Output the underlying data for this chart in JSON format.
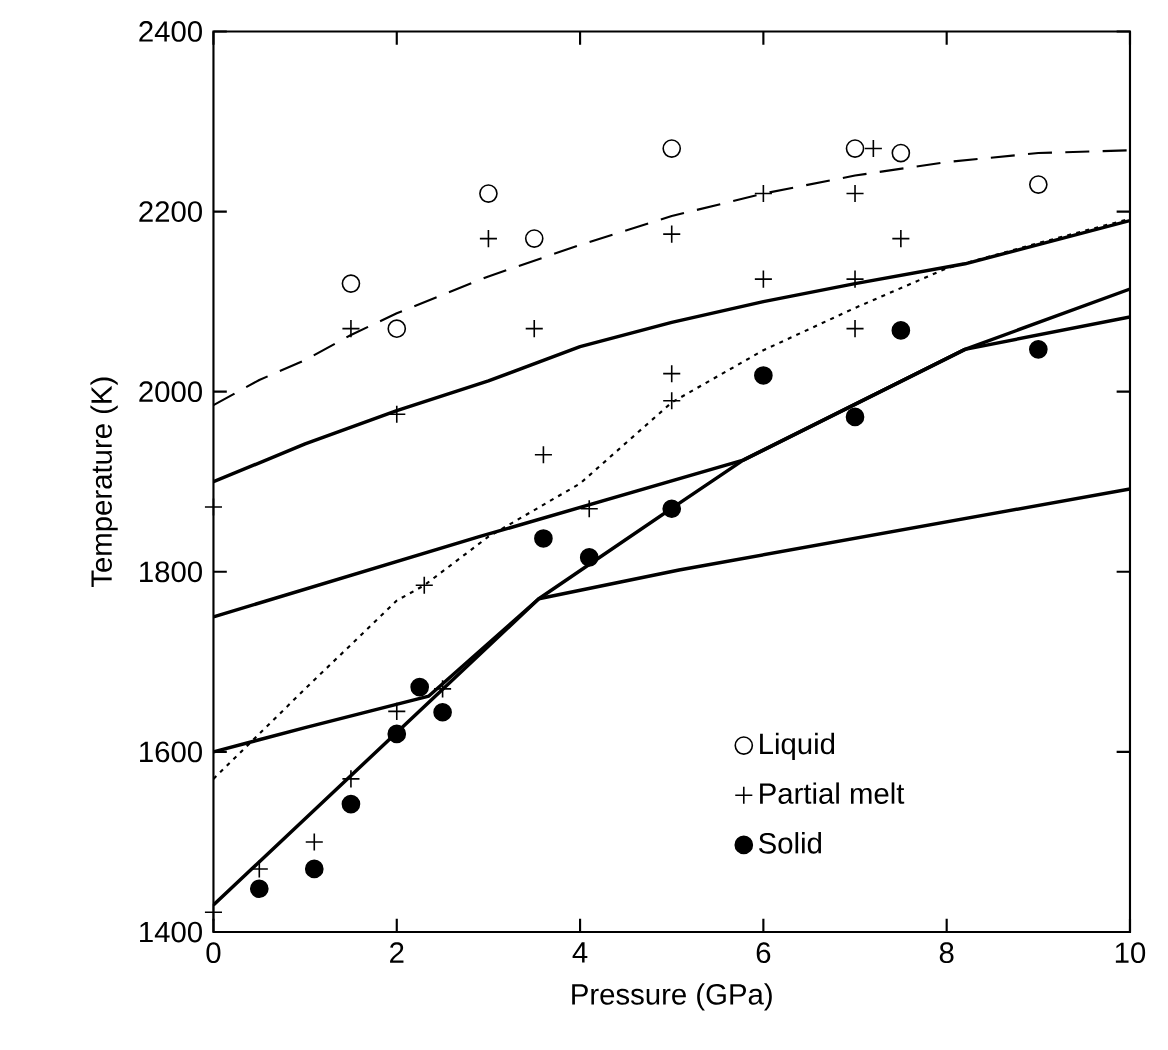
{
  "chart_data": {
    "type": "scatter",
    "xlabel": "Pressure (GPa)",
    "ylabel": "Temperature (K)",
    "xlim": [
      0,
      10
    ],
    "ylim": [
      1400,
      2400
    ],
    "xticks": [
      0,
      2,
      4,
      6,
      8,
      10
    ],
    "yticks": [
      1400,
      1600,
      1800,
      2000,
      2200,
      2400
    ],
    "legend": "bottom right",
    "series": [
      {
        "name": "Liquid",
        "marker": "circle",
        "color": "#ffffff",
        "x": [
          1.5,
          2,
          3,
          3.5,
          5,
          7,
          7.5,
          9
        ],
        "values": [
          2120,
          2070,
          2220,
          2170,
          2270,
          2270,
          2265,
          2230
        ]
      },
      {
        "name": "Partial melt",
        "marker": "cross",
        "color": "#000000",
        "x": [
          0,
          0,
          0.5,
          1.1,
          1.5,
          1.5,
          2,
          2,
          2.3,
          2.5,
          3,
          3.5,
          3.6,
          4.1,
          5,
          5,
          5,
          6,
          6,
          7,
          7,
          7,
          7.2,
          7.5
        ],
        "values": [
          1872,
          1422,
          1470,
          1500,
          1570,
          2070,
          1645,
          1975,
          1785,
          1670,
          2170,
          2070,
          1930,
          1870,
          2175,
          2020,
          1990,
          2220,
          2125,
          2220,
          2125,
          2070,
          2270,
          2170
        ]
      },
      {
        "name": "Solid",
        "marker": "circle",
        "color": "#000000",
        "x": [
          0.5,
          1.1,
          1.5,
          2,
          2.25,
          2.5,
          3.6,
          4.1,
          5,
          6,
          7,
          7.5,
          9
        ],
        "values": [
          1448,
          1470,
          1542,
          1620,
          1672,
          1644,
          1837,
          1816,
          1870,
          2018,
          1972,
          2068,
          2047
        ]
      },
      {
        "type": "line",
        "line_style": "dashed",
        "color": "#000000",
        "x": [
          0,
          0.5,
          1,
          1.5,
          2,
          3,
          4,
          5,
          6,
          7,
          8,
          9,
          10
        ],
        "values": [
          1985,
          2013,
          2035,
          2063,
          2087,
          2128,
          2163,
          2195,
          2220,
          2240,
          2255,
          2265,
          2268
        ]
      },
      {
        "type": "line",
        "line_style": "solid",
        "color": "#000000",
        "x": [
          0,
          1,
          2,
          3,
          4,
          5,
          6,
          7,
          8.2,
          10
        ],
        "values": [
          1900,
          1942,
          1979,
          2012,
          2050,
          2077,
          2100,
          2120,
          2142,
          2190
        ]
      },
      {
        "type": "line",
        "line_style": "dotted",
        "color": "#000000",
        "x": [
          0,
          1,
          2,
          2.3,
          3,
          4,
          5,
          6,
          7,
          8,
          9,
          10
        ],
        "values": [
          1570,
          1670,
          1768,
          1785,
          1839,
          1898,
          1988,
          2046,
          2093,
          2137,
          2165,
          2192
        ]
      },
      {
        "type": "line",
        "line_style": "solid",
        "color": "#000000",
        "x": [
          0,
          2.9,
          5.78,
          8.2,
          10
        ],
        "values": [
          1750,
          1839,
          1924,
          2047,
          2083
        ]
      },
      {
        "type": "line",
        "line_style": "solid",
        "color": "#000000",
        "x": [
          0,
          1,
          2.35,
          3.55,
          5.08,
          10
        ],
        "values": [
          1600,
          1627,
          1662,
          1770,
          1802,
          1892
        ]
      },
      {
        "type": "line",
        "line_style": "solid",
        "color": "#000000",
        "x": [
          0,
          3.55,
          5.08,
          5.78,
          8.2,
          10
        ],
        "values": [
          1430,
          1770,
          1876,
          1924,
          2047,
          2114
        ]
      }
    ]
  }
}
